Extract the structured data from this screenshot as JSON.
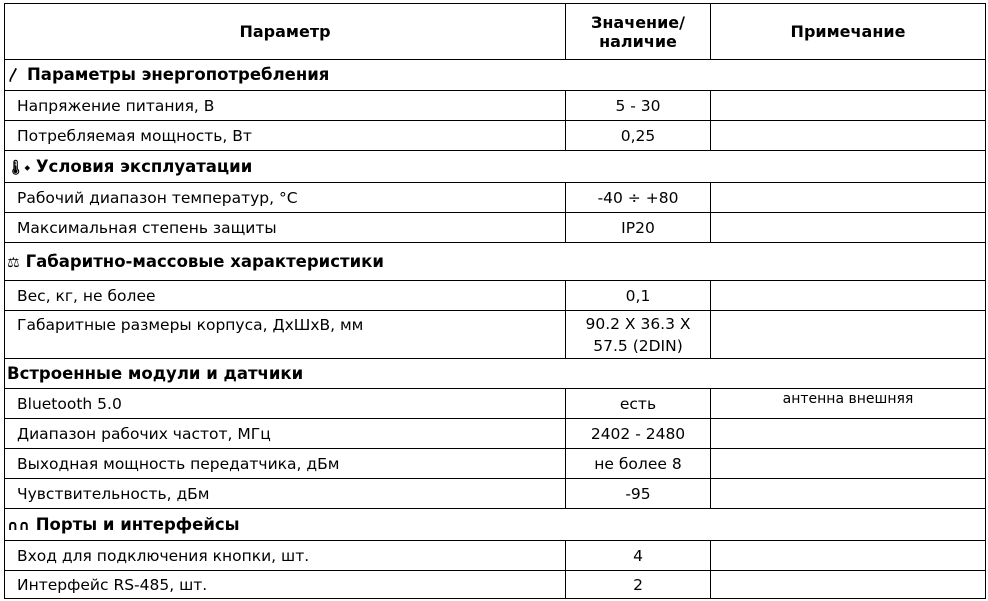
{
  "header": {
    "param": "Параметр",
    "value": "Значение/\nналичие",
    "value_l1": "Значение/",
    "value_l2": "наличие",
    "note": "Примечание"
  },
  "sections": [
    {
      "title": "Параметры энергопотребления",
      "icon": "lightning-icon",
      "rows": [
        {
          "param": "Напряжение питания, В",
          "value": "5 - 30",
          "note": ""
        },
        {
          "param": "Потребляемая мощность, Вт",
          "value": "0,25",
          "note": ""
        }
      ]
    },
    {
      "title": "Условия  эксплуатации",
      "icon": "thermometer-drop-icon",
      "rows": [
        {
          "param": "Рабочий диапазон температур, °С",
          "value": "-40 ÷ +80",
          "note": ""
        },
        {
          "param": "Максимальная степень защиты",
          "value": "IP20",
          "note": ""
        }
      ]
    },
    {
      "title": "Габаритно-массовые характеристики",
      "icon": "scales-icon",
      "rows": [
        {
          "param": "Вес, кг, не более",
          "value": "0,1",
          "note": ""
        },
        {
          "param": "Габаритные размеры корпуса, ДхШхВ, мм",
          "value": "90.2 X 36.3 X 57.5 (2DIN)",
          "note": ""
        }
      ]
    },
    {
      "title": "Встроенные модули и датчики",
      "icon": "",
      "rows": [
        {
          "param": "Bluetooth 5.0",
          "value": "есть",
          "note": "антенна внешняя"
        },
        {
          "param": "Диапазон рабочих частот, МГц",
          "value": "2402 - 2480",
          "note": ""
        },
        {
          "param": "Выходная мощность передатчика, дБм",
          "value": "не более 8",
          "note": ""
        },
        {
          "param": "Чувствительность, дБм",
          "value": "-95",
          "note": ""
        }
      ]
    },
    {
      "title": "Порты и интерфейсы",
      "icon": "ports-icon",
      "rows": [
        {
          "param": "Вход для подключения кнопки, шт.",
          "value": "4",
          "note": ""
        },
        {
          "param": "Интерфейс RS-485, шт.",
          "value": "2",
          "note": ""
        }
      ]
    }
  ]
}
